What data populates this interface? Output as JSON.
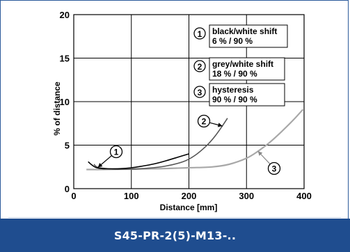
{
  "chart_data": {
    "type": "line",
    "title": "",
    "xlabel": "Distance [mm]",
    "ylabel": "% of distance",
    "xlim": [
      0,
      400
    ],
    "ylim": [
      0,
      20
    ],
    "x_ticks": [
      0,
      100,
      200,
      300,
      400
    ],
    "y_ticks": [
      0,
      5,
      10,
      15,
      20
    ],
    "grid": true,
    "legend": [
      {
        "number": "1",
        "line1": "black/white shift",
        "line2": "6 % / 90 %"
      },
      {
        "number": "2",
        "line1": "grey/white shift",
        "line2": "18 % / 90 %"
      },
      {
        "number": "3",
        "line1": "hysteresis",
        "line2": "90 % / 90 %"
      }
    ],
    "series": [
      {
        "id": "1",
        "color": "#000000",
        "x": [
          25,
          30,
          35,
          40,
          50,
          60,
          80,
          100,
          120,
          140,
          160,
          180,
          200
        ],
        "y": [
          3.1,
          2.8,
          2.55,
          2.4,
          2.3,
          2.28,
          2.3,
          2.4,
          2.6,
          2.85,
          3.2,
          3.6,
          4.0
        ]
      },
      {
        "id": "2",
        "color": "#555555",
        "x": [
          35,
          40,
          50,
          70,
          100,
          130,
          160,
          190,
          210,
          230,
          245,
          258,
          267
        ],
        "y": [
          2.8,
          2.5,
          2.35,
          2.25,
          2.25,
          2.35,
          2.6,
          3.1,
          3.8,
          4.9,
          6.0,
          7.2,
          8.1
        ]
      },
      {
        "id": "3",
        "color": "#a8a8a8",
        "x": [
          22,
          50,
          100,
          150,
          200,
          240,
          270,
          300,
          320,
          340,
          360,
          380,
          398
        ],
        "y": [
          2.2,
          2.2,
          2.25,
          2.3,
          2.4,
          2.5,
          2.8,
          3.5,
          4.3,
          5.3,
          6.5,
          7.8,
          9.1
        ]
      }
    ],
    "annotations": [
      {
        "number": "1",
        "target_x": 42,
        "target_y": 2.45
      },
      {
        "number": "2",
        "target_x": 258,
        "target_y": 7.2
      },
      {
        "number": "3",
        "target_x": 320,
        "target_y": 4.3
      }
    ]
  },
  "footer": {
    "label": "S45-PR-2(5)-M13-.."
  }
}
